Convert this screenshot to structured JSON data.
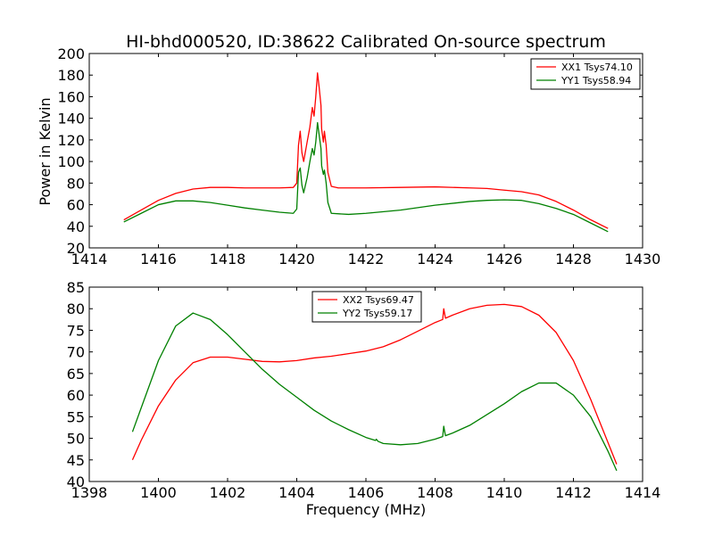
{
  "figure": {
    "title": "HI-bhd000520, ID:38622 Calibrated On-source spectrum",
    "ylabel": "Power in Kelvin",
    "xlabel": "Frequency (MHz)"
  },
  "chart_data": [
    {
      "type": "line",
      "xlim": [
        1414,
        1430
      ],
      "ylim": [
        20,
        200
      ],
      "xticks": [
        "1414",
        "1416",
        "1418",
        "1420",
        "1422",
        "1424",
        "1426",
        "1428",
        "1430"
      ],
      "yticks": [
        "20",
        "40",
        "60",
        "80",
        "100",
        "120",
        "140",
        "160",
        "180",
        "200"
      ],
      "legend_position": "upper right",
      "series": [
        {
          "name": "XX1 Tsys74.10",
          "color": "#ff0000",
          "points": [
            [
              1415.0,
              46
            ],
            [
              1415.5,
              55
            ],
            [
              1416.0,
              64
            ],
            [
              1416.5,
              70.5
            ],
            [
              1417.0,
              74.5
            ],
            [
              1417.5,
              76
            ],
            [
              1418.0,
              76
            ],
            [
              1418.5,
              75.5
            ],
            [
              1419.0,
              75.5
            ],
            [
              1419.5,
              75.5
            ],
            [
              1419.9,
              76
            ],
            [
              1420.0,
              80
            ],
            [
              1420.05,
              115
            ],
            [
              1420.1,
              128
            ],
            [
              1420.15,
              108
            ],
            [
              1420.2,
              100
            ],
            [
              1420.3,
              118
            ],
            [
              1420.38,
              132
            ],
            [
              1420.45,
              150
            ],
            [
              1420.5,
              142
            ],
            [
              1420.55,
              160
            ],
            [
              1420.6,
              182
            ],
            [
              1420.65,
              168
            ],
            [
              1420.7,
              152
            ],
            [
              1420.72,
              130
            ],
            [
              1420.77,
              118
            ],
            [
              1420.8,
              128
            ],
            [
              1420.85,
              115
            ],
            [
              1420.9,
              90
            ],
            [
              1421.0,
              77
            ],
            [
              1421.2,
              75.5
            ],
            [
              1422.0,
              75.5
            ],
            [
              1423.0,
              76
            ],
            [
              1424.0,
              76.5
            ],
            [
              1425.0,
              75.5
            ],
            [
              1425.5,
              75
            ],
            [
              1426.0,
              73.5
            ],
            [
              1426.5,
              72
            ],
            [
              1427.0,
              69
            ],
            [
              1427.5,
              63
            ],
            [
              1428.0,
              55
            ],
            [
              1428.5,
              46
            ],
            [
              1429.0,
              38
            ]
          ]
        },
        {
          "name": "YY1 Tsys58.94",
          "color": "#008000",
          "points": [
            [
              1415.0,
              44
            ],
            [
              1415.5,
              52
            ],
            [
              1416.0,
              60
            ],
            [
              1416.5,
              63.5
            ],
            [
              1417.0,
              63.5
            ],
            [
              1417.5,
              62
            ],
            [
              1418.0,
              59.5
            ],
            [
              1418.5,
              57
            ],
            [
              1419.0,
              55
            ],
            [
              1419.5,
              53
            ],
            [
              1419.9,
              52
            ],
            [
              1420.0,
              56
            ],
            [
              1420.05,
              90
            ],
            [
              1420.1,
              94
            ],
            [
              1420.15,
              78
            ],
            [
              1420.2,
              71
            ],
            [
              1420.3,
              85
            ],
            [
              1420.38,
              100
            ],
            [
              1420.45,
              112
            ],
            [
              1420.5,
              106
            ],
            [
              1420.55,
              118
            ],
            [
              1420.6,
              136
            ],
            [
              1420.65,
              124
            ],
            [
              1420.7,
              112
            ],
            [
              1420.72,
              96
            ],
            [
              1420.77,
              88
            ],
            [
              1420.8,
              92
            ],
            [
              1420.85,
              80
            ],
            [
              1420.9,
              62
            ],
            [
              1421.0,
              52
            ],
            [
              1421.5,
              51
            ],
            [
              1422.0,
              52
            ],
            [
              1423.0,
              55
            ],
            [
              1424.0,
              59.5
            ],
            [
              1425.0,
              63
            ],
            [
              1425.5,
              64
            ],
            [
              1426.0,
              64.5
            ],
            [
              1426.5,
              64
            ],
            [
              1427.0,
              61
            ],
            [
              1427.5,
              56.5
            ],
            [
              1428.0,
              51
            ],
            [
              1428.5,
              43
            ],
            [
              1429.0,
              35
            ]
          ]
        }
      ]
    },
    {
      "type": "line",
      "xlim": [
        1398,
        1414
      ],
      "ylim": [
        40,
        85
      ],
      "xticks": [
        "1398",
        "1400",
        "1402",
        "1404",
        "1406",
        "1408",
        "1410",
        "1412",
        "1414"
      ],
      "yticks": [
        "40",
        "45",
        "50",
        "55",
        "60",
        "65",
        "70",
        "75",
        "80",
        "85"
      ],
      "legend_position": "upper center",
      "series": [
        {
          "name": "XX2 Tsys69.47",
          "color": "#ff0000",
          "points": [
            [
              1399.25,
              45
            ],
            [
              1399.5,
              49.5
            ],
            [
              1400.0,
              57.5
            ],
            [
              1400.5,
              63.5
            ],
            [
              1401.0,
              67.5
            ],
            [
              1401.5,
              68.8
            ],
            [
              1402.0,
              68.8
            ],
            [
              1402.5,
              68.3
            ],
            [
              1403.0,
              67.8
            ],
            [
              1403.5,
              67.7
            ],
            [
              1404.0,
              68
            ],
            [
              1404.5,
              68.6
            ],
            [
              1405.0,
              69
            ],
            [
              1405.5,
              69.6
            ],
            [
              1406.0,
              70.2
            ],
            [
              1406.5,
              71.2
            ],
            [
              1407.0,
              72.8
            ],
            [
              1407.5,
              74.8
            ],
            [
              1408.0,
              76.8
            ],
            [
              1408.22,
              77.5
            ],
            [
              1408.25,
              80
            ],
            [
              1408.3,
              77.8
            ],
            [
              1408.5,
              78.5
            ],
            [
              1409.0,
              80
            ],
            [
              1409.5,
              80.8
            ],
            [
              1410.0,
              81
            ],
            [
              1410.5,
              80.5
            ],
            [
              1411.0,
              78.5
            ],
            [
              1411.5,
              74.5
            ],
            [
              1412.0,
              68
            ],
            [
              1412.5,
              59
            ],
            [
              1413.0,
              49
            ],
            [
              1413.25,
              44
            ]
          ]
        },
        {
          "name": "YY2 Tsys59.17",
          "color": "#008000",
          "points": [
            [
              1399.25,
              51.5
            ],
            [
              1399.5,
              57
            ],
            [
              1400.0,
              68
            ],
            [
              1400.5,
              76
            ],
            [
              1401.0,
              79
            ],
            [
              1401.5,
              77.5
            ],
            [
              1402.0,
              74
            ],
            [
              1402.5,
              70
            ],
            [
              1403.0,
              66
            ],
            [
              1403.5,
              62.5
            ],
            [
              1404.0,
              59.5
            ],
            [
              1404.5,
              56.5
            ],
            [
              1405.0,
              54
            ],
            [
              1405.5,
              52
            ],
            [
              1406.0,
              50.2
            ],
            [
              1406.28,
              49.5
            ],
            [
              1406.3,
              49.8
            ],
            [
              1406.35,
              49.3
            ],
            [
              1406.5,
              48.8
            ],
            [
              1407.0,
              48.5
            ],
            [
              1407.5,
              48.8
            ],
            [
              1408.0,
              49.8
            ],
            [
              1408.22,
              50.4
            ],
            [
              1408.25,
              52.8
            ],
            [
              1408.3,
              50.6
            ],
            [
              1408.5,
              51.2
            ],
            [
              1409.0,
              53
            ],
            [
              1409.5,
              55.5
            ],
            [
              1410.0,
              58
            ],
            [
              1410.5,
              60.8
            ],
            [
              1411.0,
              62.8
            ],
            [
              1411.5,
              62.8
            ],
            [
              1412.0,
              60
            ],
            [
              1412.5,
              55
            ],
            [
              1413.0,
              47
            ],
            [
              1413.25,
              42.5
            ]
          ]
        }
      ]
    }
  ]
}
